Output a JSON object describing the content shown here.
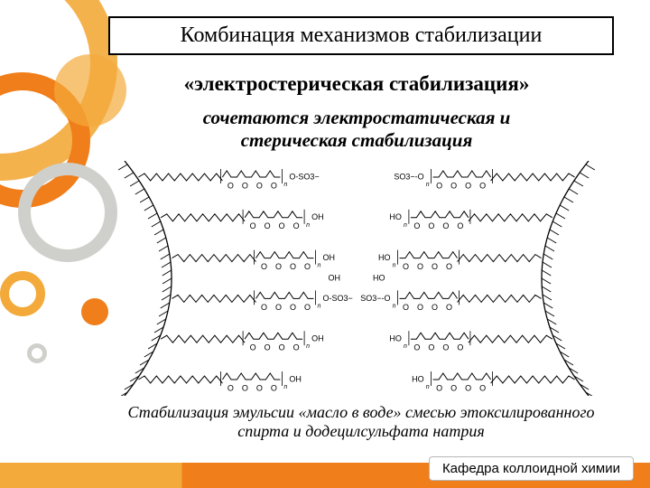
{
  "title": "Комбинация механизмов стабилизации",
  "subtitle": "«электростерическая стабилизация»",
  "description_line1": "сочетаются электростатическая и",
  "description_line2": "стерическая стабилизация",
  "caption_line1": "Стабилизация эмульсии «масло в воде» смесью этоксилированного",
  "caption_line2": "спирта и додецилсульфата натрия",
  "footer": "Кафедра коллоидной химии",
  "diagram": {
    "type": "chemical-scheme",
    "background_color": "#ffffff",
    "stroke_color": "#000000",
    "label_fontsize": 9,
    "label_fontfamily": "Arial, sans-serif",
    "zigzag_amplitude": 4,
    "zigzag_segments": 14,
    "chain_units": 4,
    "row_count": 6,
    "left_head_labels": [
      "O-SO3−",
      "OH",
      "OH",
      "O-SO3−",
      "OH",
      "OH"
    ],
    "right_head_labels": [
      "SO3−-O",
      "HO",
      "HO",
      "SO3−-O",
      "HO",
      "HO"
    ],
    "terminal_left": "OH",
    "terminal_right": "HO",
    "subscript": "n",
    "colors": {
      "decor_orange": "#f3aa3a",
      "decor_dark_orange": "#f07e1a",
      "decor_grey": "#cfd0cb"
    }
  }
}
